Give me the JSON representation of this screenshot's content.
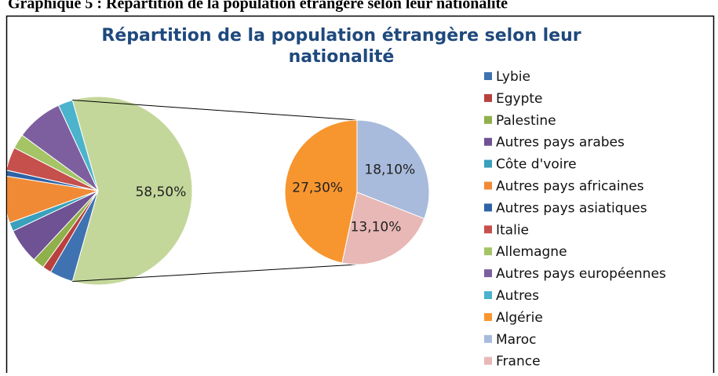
{
  "caption": "Graphique 5 : Répartition de la population étrangère selon leur nationalité",
  "chart_data": {
    "type": "pie-of-pie",
    "title": [
      "Répartition de la population étrangère selon leur",
      "nationalité"
    ],
    "categories": [
      "Lybie",
      "Egypte",
      "Palestine",
      "Autres pays arabes",
      "Côte d'voire",
      "Autres pays africaines",
      "Autres pays asiatiques",
      "Italie",
      "Allemagne",
      "Autres pays européennes",
      "Autres",
      "Algérie",
      "Maroc",
      "France"
    ],
    "values": [
      4,
      1.5,
      2,
      6,
      1.5,
      8,
      1,
      4,
      2.5,
      8,
      2.5,
      27.3,
      18.1,
      13.1
    ],
    "value_labels": [
      null,
      null,
      null,
      null,
      null,
      null,
      null,
      null,
      null,
      null,
      null,
      "27,30%",
      "18,10%",
      "13,10%"
    ],
    "colors": [
      "#3f72b0",
      "#b8403d",
      "#8fb04a",
      "#6f5293",
      "#3aa0bb",
      "#f08a35",
      "#2f63a6",
      "#c5504c",
      "#a4c466",
      "#7d5fa0",
      "#4bb3cc",
      "#f7962f",
      "#a8bbdc",
      "#e8b8b6"
    ],
    "secondary_count": 3,
    "secondary_total": 58.5,
    "secondary_total_label": "58,50%",
    "secondary_total_color": "#c4d79b",
    "legend": "right"
  }
}
